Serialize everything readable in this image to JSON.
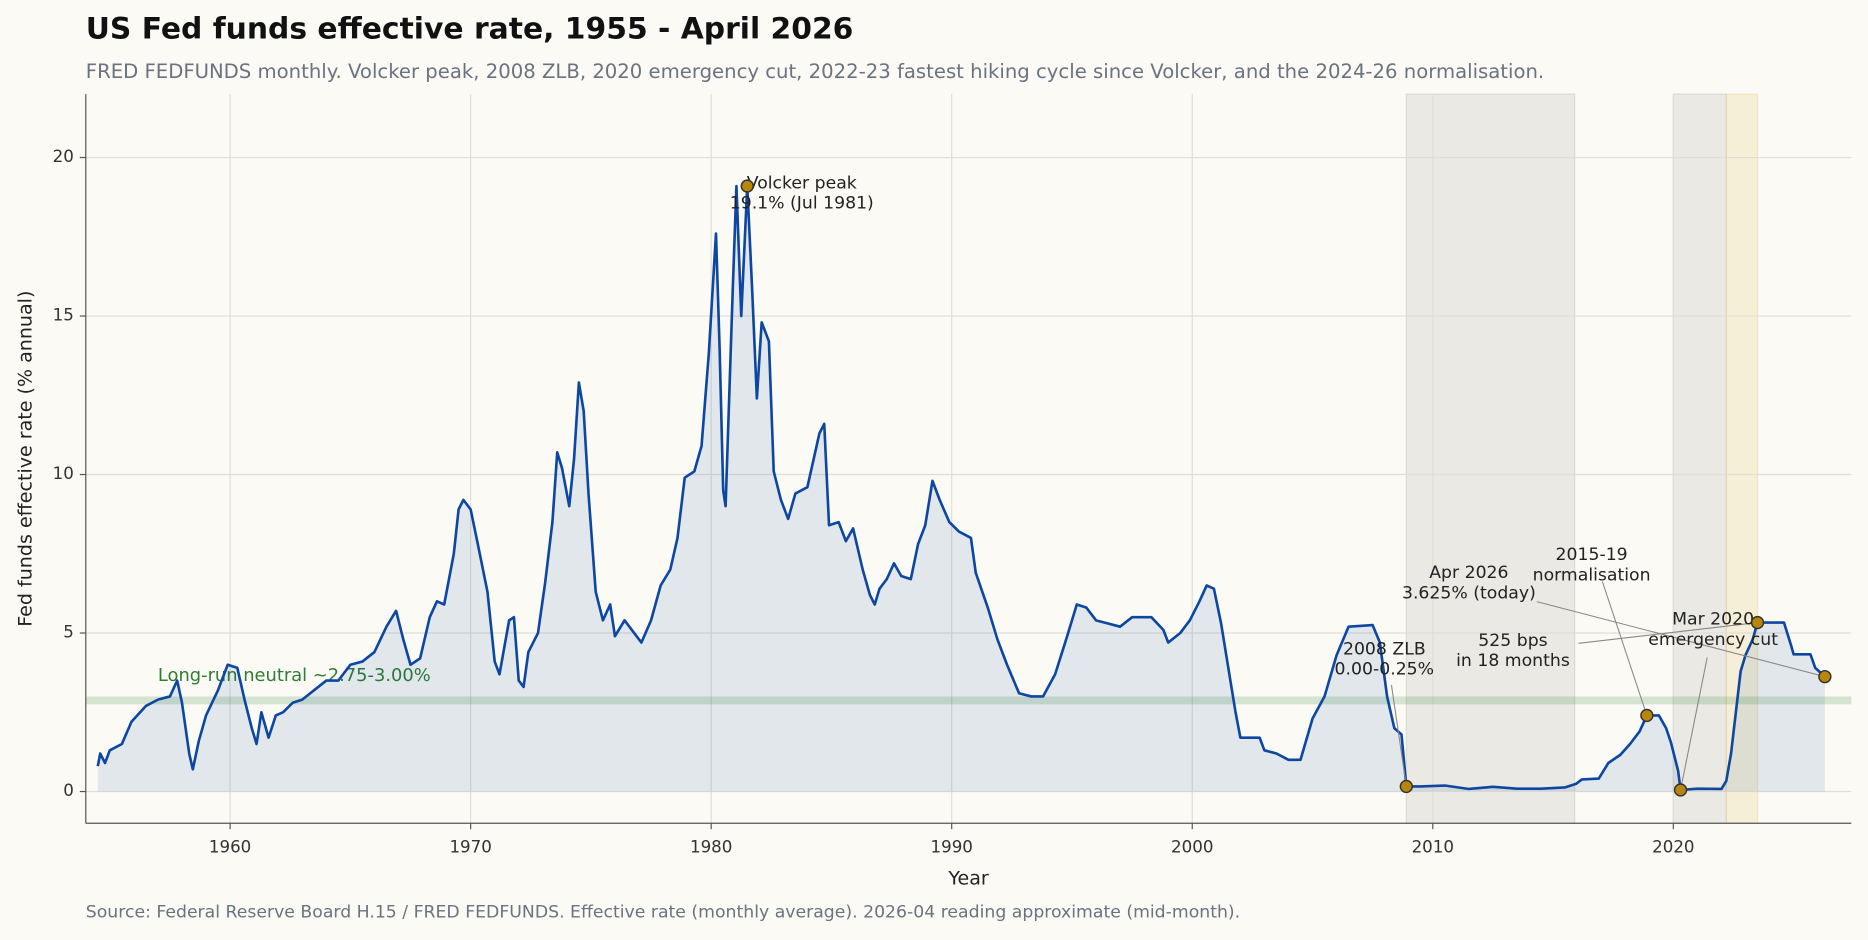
{
  "chart_data": {
    "type": "line",
    "title": "US Fed funds effective rate, 1955 - April 2026",
    "subtitle": "FRED FEDFUNDS monthly. Volcker peak, 2008 ZLB, 2020 emergency cut, 2022-23 fastest hiking cycle since Volcker, and the 2024-26 normalisation.",
    "x_label": "Year",
    "y_label": "Fed funds effective rate (% annual)",
    "source": "Source: Federal Reserve Board H.15 / FRED FEDFUNDS. Effective rate (monthly average). 2026-04 reading approximate (mid-month).",
    "xlim": [
      1954,
      2027.4
    ],
    "ylim": [
      -1,
      22
    ],
    "xticks": [
      1960,
      1970,
      1980,
      1990,
      2000,
      2010,
      2020
    ],
    "yticks": [
      0,
      5,
      10,
      15,
      20
    ],
    "grid": true,
    "x": [
      1954.5,
      1954.6,
      1954.8,
      1955.0,
      1955.5,
      1955.9,
      1956.5,
      1957.0,
      1957.5,
      1957.8,
      1958.0,
      1958.3,
      1958.45,
      1958.7,
      1959.0,
      1959.5,
      1959.9,
      1960.3,
      1960.6,
      1960.9,
      1961.1,
      1961.3,
      1961.6,
      1961.9,
      1962.2,
      1962.6,
      1963.0,
      1963.5,
      1964.0,
      1964.5,
      1965.0,
      1965.5,
      1966.0,
      1966.5,
      1966.9,
      1967.2,
      1967.5,
      1967.9,
      1968.3,
      1968.6,
      1968.9,
      1969.3,
      1969.5,
      1969.7,
      1970.0,
      1970.3,
      1970.7,
      1971.0,
      1971.2,
      1971.6,
      1971.8,
      1972.0,
      1972.2,
      1972.4,
      1972.8,
      1973.1,
      1973.4,
      1973.6,
      1973.8,
      1974.1,
      1974.3,
      1974.5,
      1974.7,
      1974.9,
      1975.2,
      1975.5,
      1975.8,
      1976.0,
      1976.4,
      1976.8,
      1977.1,
      1977.5,
      1977.9,
      1978.3,
      1978.6,
      1978.9,
      1979.3,
      1979.6,
      1979.9,
      1980.2,
      1980.35,
      1980.5,
      1980.6,
      1980.9,
      1981.05,
      1981.25,
      1981.5,
      1981.7,
      1981.9,
      1982.1,
      1982.4,
      1982.6,
      1982.9,
      1983.2,
      1983.5,
      1984.0,
      1984.5,
      1984.7,
      1984.9,
      1985.3,
      1985.6,
      1985.9,
      1986.3,
      1986.6,
      1986.8,
      1987.0,
      1987.3,
      1987.6,
      1987.9,
      1988.3,
      1988.6,
      1988.9,
      1989.2,
      1989.5,
      1989.9,
      1990.3,
      1990.8,
      1991.0,
      1991.5,
      1991.9,
      1992.3,
      1992.8,
      1993.3,
      1993.8,
      1994.3,
      1994.8,
      1995.2,
      1995.6,
      1996.0,
      1996.5,
      1997.0,
      1997.5,
      1998.3,
      1998.8,
      1999.0,
      1999.5,
      1999.9,
      2000.3,
      2000.6,
      2000.9,
      2001.2,
      2001.5,
      2001.8,
      2002.0,
      2002.8,
      2003.0,
      2003.5,
      2004.0,
      2004.5,
      2005.0,
      2005.5,
      2006.0,
      2006.5,
      2007.5,
      2007.8,
      2008.1,
      2008.4,
      2008.7,
      2008.9,
      2009.5,
      2010.5,
      2011.5,
      2012.5,
      2013.5,
      2014.5,
      2015.5,
      2015.95,
      2016.2,
      2016.9,
      2017.3,
      2017.8,
      2018.2,
      2018.6,
      2018.9,
      2019.4,
      2019.7,
      2019.9,
      2020.2,
      2020.3,
      2021.0,
      2022.0,
      2022.2,
      2022.4,
      2022.6,
      2022.8,
      2023.0,
      2023.3,
      2023.5,
      2024.6,
      2024.9,
      2025.0,
      2025.7,
      2025.9,
      2026.3
    ],
    "series": [
      {
        "name": "Fed funds effective rate",
        "color": "#0d47a1",
        "values": [
          0.8,
          1.2,
          0.9,
          1.3,
          1.5,
          2.2,
          2.7,
          2.9,
          3.0,
          3.5,
          2.8,
          1.2,
          0.7,
          1.6,
          2.4,
          3.2,
          4.0,
          3.9,
          2.9,
          2.0,
          1.5,
          2.5,
          1.7,
          2.4,
          2.5,
          2.8,
          2.9,
          3.2,
          3.5,
          3.5,
          4.0,
          4.1,
          4.4,
          5.2,
          5.7,
          4.8,
          4.0,
          4.2,
          5.5,
          6.0,
          5.9,
          7.5,
          8.9,
          9.2,
          8.9,
          7.8,
          6.3,
          4.1,
          3.7,
          5.4,
          5.5,
          3.5,
          3.3,
          4.4,
          5.0,
          6.6,
          8.5,
          10.7,
          10.2,
          9.0,
          10.5,
          12.9,
          12.0,
          9.4,
          6.3,
          5.4,
          5.9,
          4.9,
          5.4,
          5.0,
          4.7,
          5.4,
          6.5,
          7.0,
          8.0,
          9.9,
          10.1,
          10.9,
          13.8,
          17.6,
          14.0,
          9.5,
          9.0,
          15.9,
          19.1,
          15.0,
          19.1,
          15.9,
          12.4,
          14.8,
          14.2,
          10.1,
          9.2,
          8.6,
          9.4,
          9.6,
          11.3,
          11.6,
          8.4,
          8.5,
          7.9,
          8.3,
          7.0,
          6.2,
          5.9,
          6.4,
          6.7,
          7.2,
          6.8,
          6.7,
          7.8,
          8.4,
          9.8,
          9.2,
          8.5,
          8.2,
          8.0,
          6.9,
          5.8,
          4.8,
          4.0,
          3.1,
          3.0,
          3.0,
          3.7,
          4.9,
          5.9,
          5.8,
          5.4,
          5.3,
          5.2,
          5.5,
          5.5,
          5.1,
          4.7,
          5.0,
          5.4,
          6.0,
          6.5,
          6.4,
          5.3,
          3.9,
          2.5,
          1.7,
          1.7,
          1.3,
          1.2,
          1.0,
          1.0,
          2.3,
          3.0,
          4.3,
          5.2,
          5.25,
          4.7,
          3.0,
          2.0,
          1.8,
          0.16,
          0.16,
          0.19,
          0.08,
          0.15,
          0.09,
          0.09,
          0.13,
          0.24,
          0.38,
          0.41,
          0.9,
          1.16,
          1.5,
          1.9,
          2.4,
          2.4,
          2.0,
          1.55,
          0.65,
          0.05,
          0.09,
          0.08,
          0.33,
          1.2,
          2.5,
          3.8,
          4.3,
          4.8,
          5.33,
          5.33,
          4.6,
          4.33,
          4.33,
          3.9,
          3.625
        ]
      }
    ],
    "neutral_band": {
      "low": 2.75,
      "high": 3.0,
      "label": "Long-run neutral ~2.75-3.00%",
      "color": "#2e7d32"
    },
    "shaded_periods": [
      {
        "start": 2008.9,
        "end": 2015.9,
        "color": "#b8b8b0"
      },
      {
        "start": 2020.0,
        "end": 2022.2,
        "color": "#b8b8b0"
      },
      {
        "start": 2022.2,
        "end": 2023.5,
        "color": "#e8cf80"
      }
    ],
    "highlights": [
      {
        "x": 1981.5,
        "y": 19.1
      },
      {
        "x": 2008.9,
        "y": 0.16
      },
      {
        "x": 2018.9,
        "y": 2.4
      },
      {
        "x": 2020.3,
        "y": 0.05
      },
      {
        "x": 2023.5,
        "y": 5.33
      },
      {
        "x": 2026.3,
        "y": 3.625
      }
    ],
    "marker_color": "#b8860b",
    "annotations": [
      {
        "text": [
          "Volcker peak",
          "19.1% (Jul 1981)"
        ],
        "point": 0
      },
      {
        "text": [
          "2008 ZLB",
          "0.00-0.25%"
        ],
        "point": 1
      },
      {
        "text": [
          "525 bps",
          "in 18 months"
        ],
        "point": 4
      },
      {
        "text": [
          "Apr 2026",
          "3.625% (today)"
        ],
        "point": 5
      },
      {
        "text": [
          "2015-19",
          "normalisation"
        ],
        "point": 2
      },
      {
        "text": [
          "Mar 2020",
          "emergency cut"
        ],
        "point": 3
      }
    ]
  }
}
